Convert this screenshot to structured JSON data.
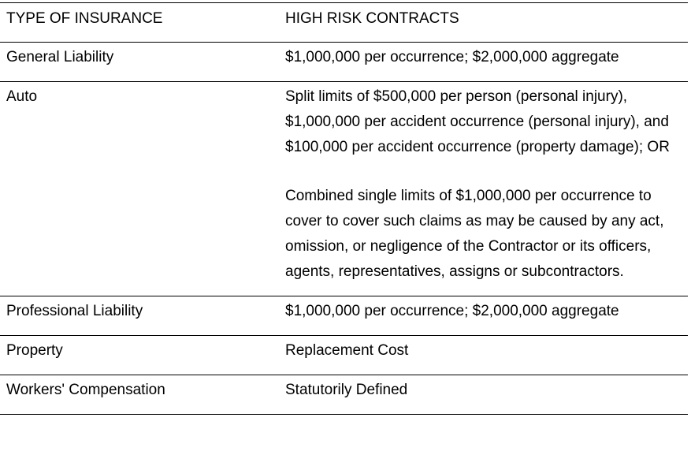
{
  "table": {
    "headers": [
      "TYPE OF INSURANCE",
      "HIGH RISK CONTRACTS"
    ],
    "rows": [
      {
        "type": "General Liability",
        "requirement": "$1,000,000 per occurrence; $2,000,000 aggregate"
      },
      {
        "type": "Auto",
        "requirement_option_1": "Split limits of $500,000 per person (personal injury), $1,000,000 per accident occurrence (personal injury), and $100,000 per accident occurrence (property damage); OR",
        "requirement_option_2": "Combined single limits of $1,000,000 per occurrence to cover to cover such claims as may be caused by any act, omission, or negligence of the Contractor or its officers, agents, representatives, assigns or subcontractors."
      },
      {
        "type": "Professional Liability",
        "requirement": "$1,000,000 per occurrence; $2,000,000 aggregate"
      },
      {
        "type": "Property",
        "requirement": "Replacement Cost"
      },
      {
        "type": "Workers' Compensation",
        "requirement": "Statutorily Defined"
      }
    ]
  }
}
